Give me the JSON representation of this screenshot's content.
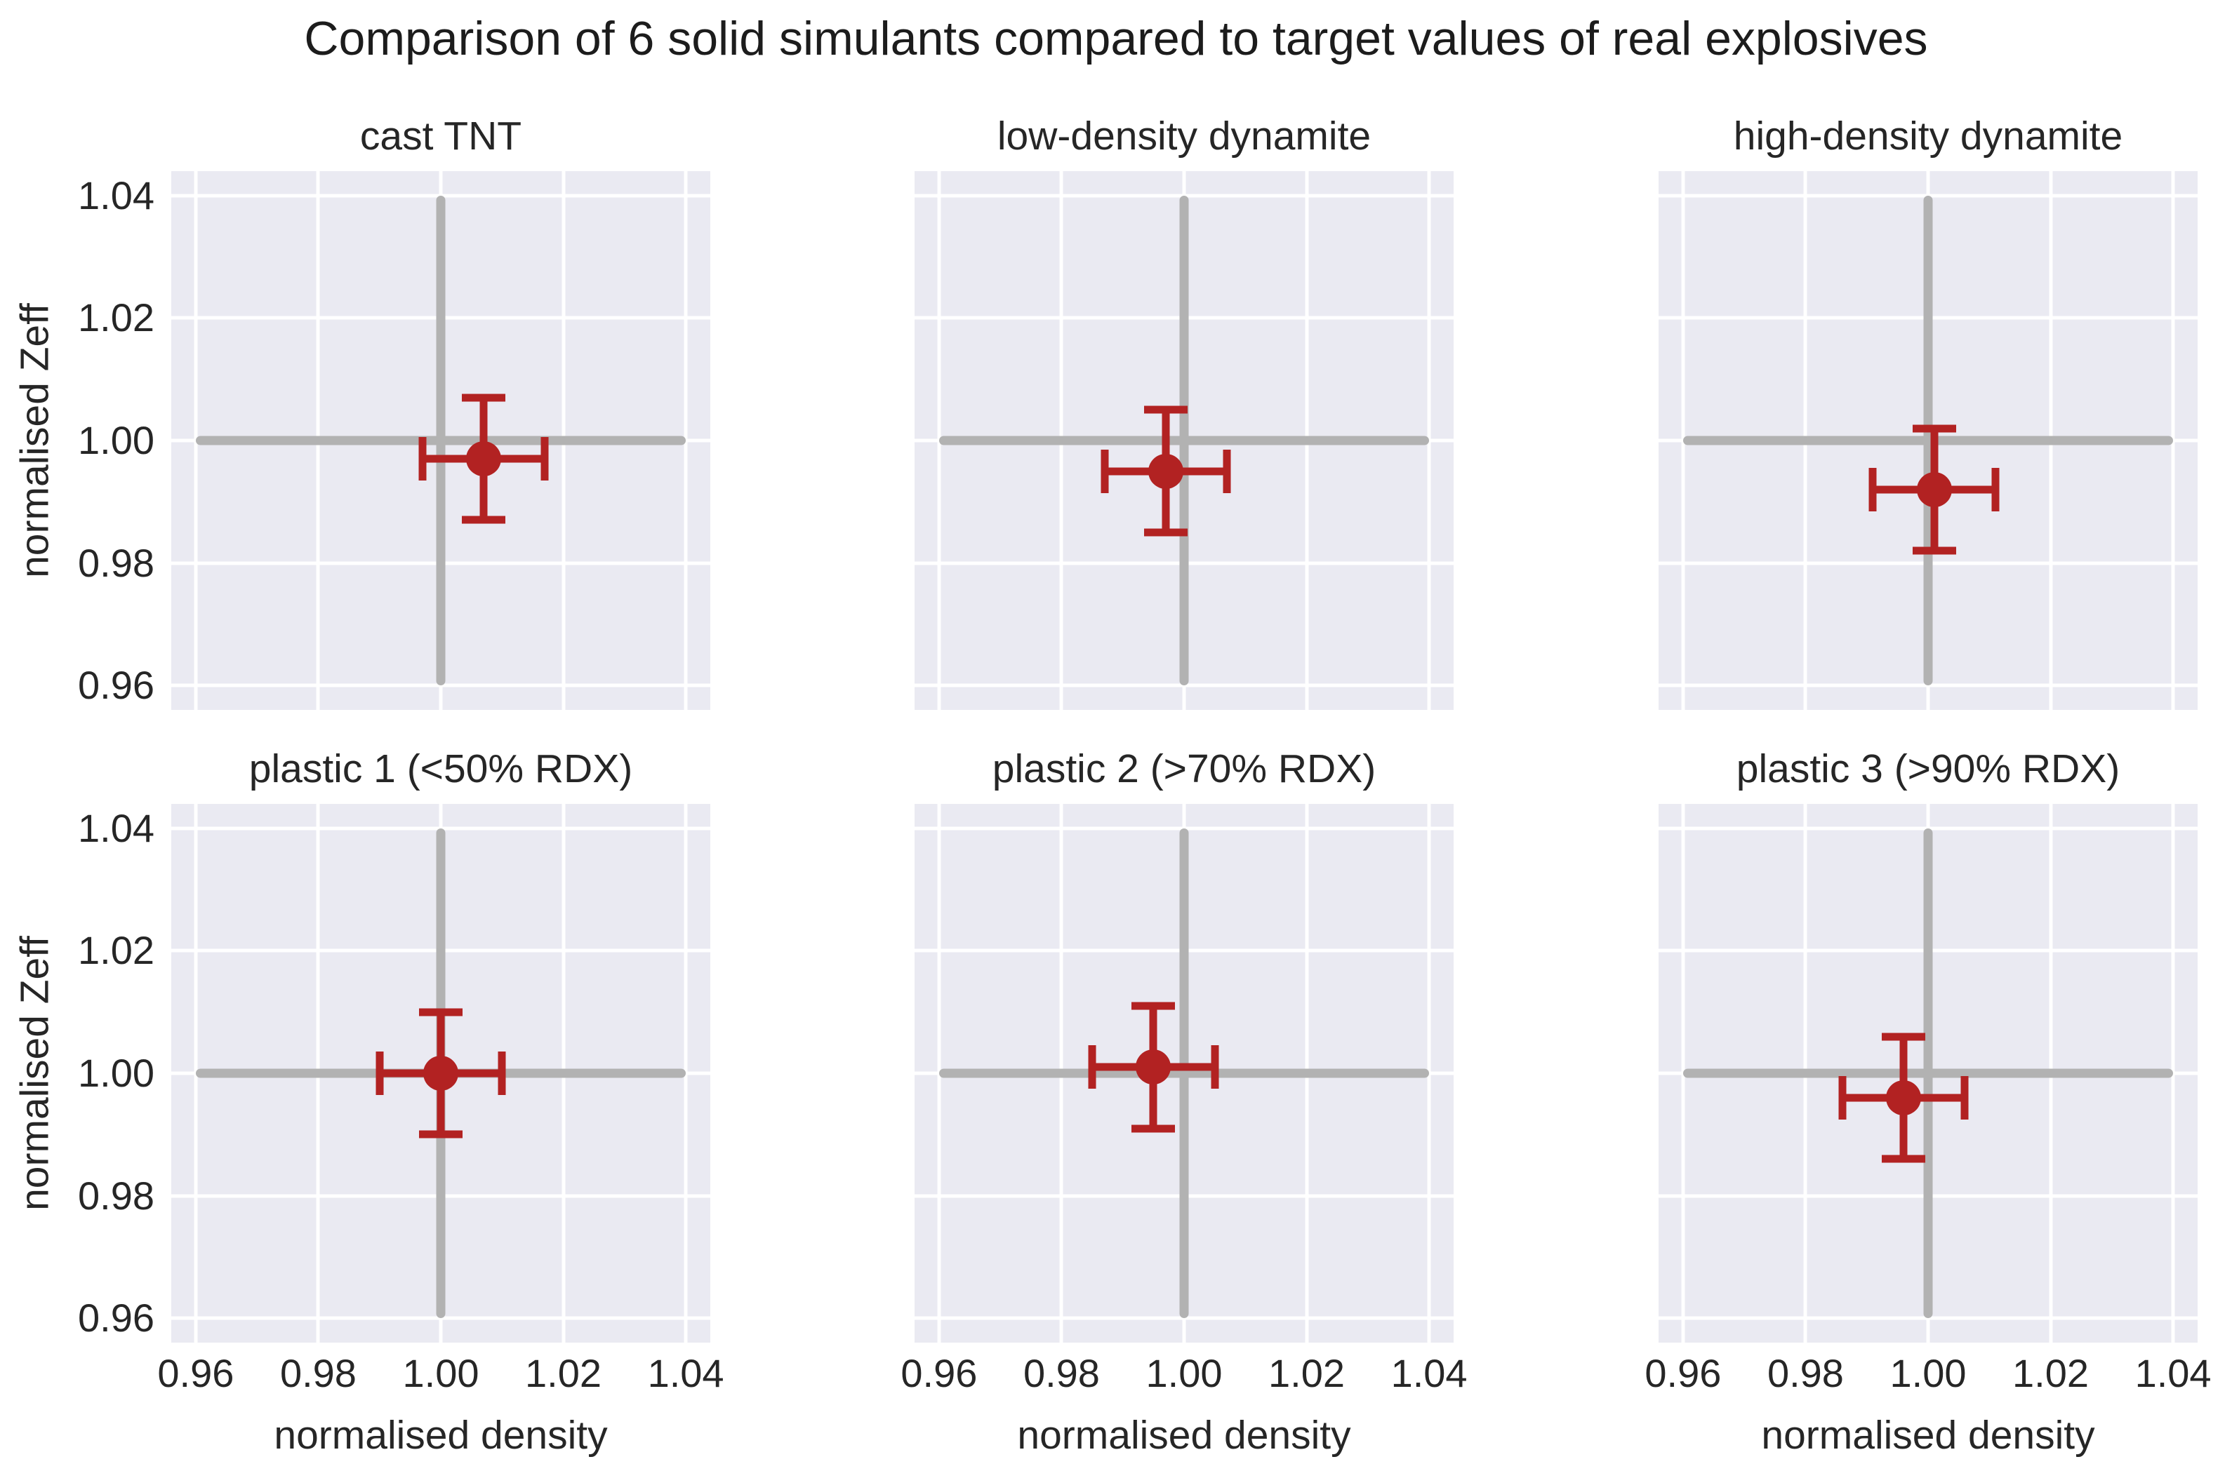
{
  "figure": {
    "title": "Comparison of 6 solid simulants compared to target values of real explosives"
  },
  "chart_data": {
    "type": "scatter",
    "layout": {
      "rows": 2,
      "cols": 3,
      "xlim": [
        0.956,
        1.044
      ],
      "ylim": [
        0.956,
        1.044
      ],
      "xticks": [
        0.96,
        0.98,
        1.0,
        1.02,
        1.04
      ],
      "yticks": [
        0.96,
        0.98,
        1.0,
        1.02,
        1.04
      ],
      "xtick_labels": [
        "0.96",
        "0.98",
        "1.00",
        "1.02",
        "1.04"
      ],
      "ytick_labels": [
        "1.04",
        "1.02",
        "1.00",
        "0.98",
        "0.96"
      ],
      "grid": true,
      "legend": "none"
    },
    "xlabel": "normalised density",
    "ylabel": "normalised Zeff",
    "reference_lines": {
      "x": 1.0,
      "y": 1.0,
      "span": [
        0.96,
        1.04
      ]
    },
    "subplots": [
      {
        "title": "cast TNT",
        "x": 1.007,
        "y": 0.997,
        "xerr": 0.01,
        "yerr": 0.01
      },
      {
        "title": "low-density dynamite",
        "x": 0.997,
        "y": 0.995,
        "xerr": 0.01,
        "yerr": 0.01
      },
      {
        "title": "high-density dynamite",
        "x": 1.001,
        "y": 0.992,
        "xerr": 0.01,
        "yerr": 0.01
      },
      {
        "title": "plastic 1 (<50% RDX)",
        "x": 1.0,
        "y": 1.0,
        "xerr": 0.01,
        "yerr": 0.01
      },
      {
        "title": "plastic 2 (>70% RDX)",
        "x": 0.995,
        "y": 1.001,
        "xerr": 0.01,
        "yerr": 0.01
      },
      {
        "title": "plastic 3 (>90% RDX)",
        "x": 0.996,
        "y": 0.996,
        "xerr": 0.01,
        "yerr": 0.01
      }
    ],
    "colors": {
      "marker": "#b22222",
      "error_bar": "#b22222",
      "crosshair": "#b2b2b2",
      "plot_background": "#eaeaf2",
      "gridline": "#ffffff",
      "text": "#262626"
    }
  }
}
